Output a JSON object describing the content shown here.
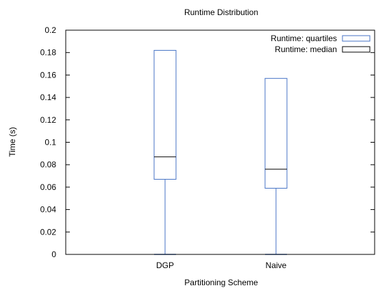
{
  "chart_data": {
    "type": "boxplot",
    "title": "Runtime Distribution",
    "xlabel": "Partitioning Scheme",
    "ylabel": "Time (s)",
    "ylim": [
      0,
      0.2
    ],
    "yticks": [
      "0",
      "0.02",
      "0.04",
      "0.06",
      "0.08",
      "0.1",
      "0.12",
      "0.14",
      "0.16",
      "0.18",
      "0.2"
    ],
    "categories": [
      "DGP",
      "Naive"
    ],
    "series": [
      {
        "name": "Runtime: quartiles",
        "color": "#4472c4",
        "boxes": [
          {
            "category": "DGP",
            "min": 0.0,
            "q1": 0.067,
            "q3": 0.182,
            "max": 0.182
          },
          {
            "category": "Naive",
            "min": 0.0,
            "q1": 0.059,
            "q3": 0.157,
            "max": 0.157
          }
        ]
      },
      {
        "name": "Runtime: median",
        "color": "#000000",
        "values": [
          0.087,
          0.076
        ]
      }
    ],
    "legend_position": "top-right",
    "grid": false
  }
}
